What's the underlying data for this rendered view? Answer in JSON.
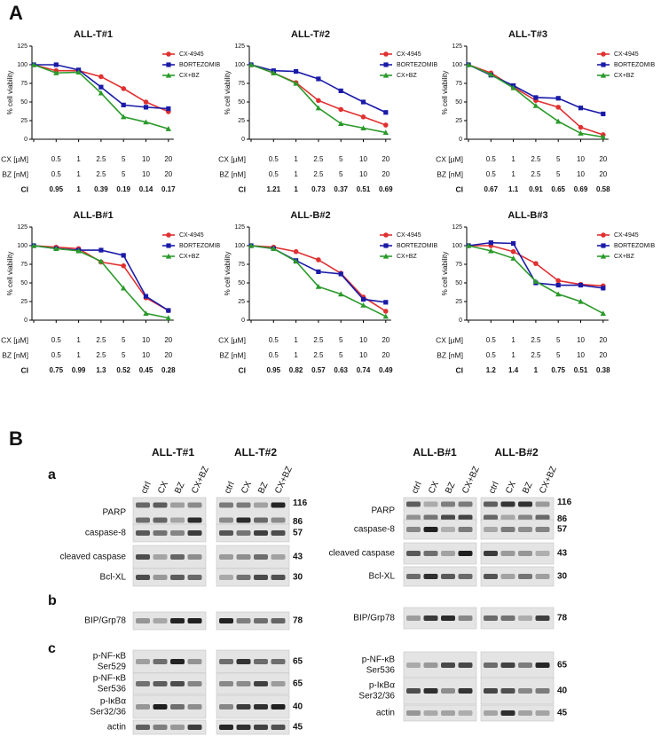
{
  "panel_labels": [
    "A",
    "B"
  ],
  "chart_data": [
    {
      "type": "line",
      "title": "ALL-T#1",
      "y_label": "% cell viability",
      "ylim": [
        0,
        125
      ],
      "yticks": [
        0,
        25,
        50,
        75,
        100,
        125
      ],
      "series": [
        {
          "name": "CX-4945",
          "color": "#e03030",
          "marker": "circle",
          "values": [
            100,
            92,
            92,
            84,
            68,
            50,
            37
          ]
        },
        {
          "name": "BORTEZOMIB",
          "color": "#1a1aa8",
          "marker": "square",
          "values": [
            100,
            100,
            93,
            70,
            46,
            43,
            41
          ]
        },
        {
          "name": "CX+BZ",
          "color": "#2a9a2a",
          "marker": "triangle",
          "values": [
            100,
            89,
            90,
            62,
            30,
            23,
            14
          ]
        }
      ],
      "rows": [
        {
          "label": "CX [µM]",
          "values": [
            0.5,
            1,
            2.5,
            5,
            10,
            20
          ]
        },
        {
          "label": "BZ [nM]",
          "values": [
            0.5,
            1,
            2.5,
            5,
            10,
            20
          ]
        },
        {
          "label": "CI",
          "values": [
            0.95,
            1,
            0.39,
            0.19,
            0.14,
            0.17
          ]
        }
      ]
    },
    {
      "type": "line",
      "title": "ALL-T#2",
      "y_label": "% cell viability",
      "ylim": [
        0,
        125
      ],
      "yticks": [
        0,
        25,
        50,
        75,
        100,
        125
      ],
      "series": [
        {
          "name": "CX-4945",
          "color": "#e03030",
          "marker": "circle",
          "values": [
            100,
            89,
            76,
            52,
            40,
            30,
            19
          ]
        },
        {
          "name": "BORTEZOMIB",
          "color": "#1a1aa8",
          "marker": "square",
          "values": [
            100,
            92,
            91,
            81,
            65,
            50,
            36
          ]
        },
        {
          "name": "CX+BZ",
          "color": "#2a9a2a",
          "marker": "triangle",
          "values": [
            100,
            89,
            75,
            42,
            21,
            15,
            9
          ]
        }
      ],
      "rows": [
        {
          "label": "CX [µM]",
          "values": [
            0.5,
            1,
            2.5,
            5,
            10,
            20
          ]
        },
        {
          "label": "BZ [nM]",
          "values": [
            0.5,
            1,
            2.5,
            5,
            10,
            20
          ]
        },
        {
          "label": "CI",
          "values": [
            1.21,
            1,
            0.73,
            0.37,
            0.51,
            0.69
          ]
        }
      ]
    },
    {
      "type": "line",
      "title": "ALL-T#3",
      "y_label": "% cell viability",
      "ylim": [
        0,
        125
      ],
      "yticks": [
        0,
        25,
        50,
        75,
        100,
        125
      ],
      "series": [
        {
          "name": "CX-4945",
          "color": "#e03030",
          "marker": "circle",
          "values": [
            100,
            89,
            70,
            52,
            43,
            16,
            6
          ]
        },
        {
          "name": "BORTEZOMIB",
          "color": "#1a1aa8",
          "marker": "square",
          "values": [
            100,
            86,
            72,
            56,
            55,
            42,
            34
          ]
        },
        {
          "name": "CX+BZ",
          "color": "#2a9a2a",
          "marker": "triangle",
          "values": [
            100,
            87,
            69,
            45,
            24,
            8,
            3
          ]
        }
      ],
      "rows": [
        {
          "label": "CX [µM]",
          "values": [
            0.5,
            1,
            2.5,
            5,
            10,
            20
          ]
        },
        {
          "label": "BZ [nM]",
          "values": [
            0.5,
            1,
            2.5,
            5,
            10,
            20
          ]
        },
        {
          "label": "CI",
          "values": [
            0.67,
            1.1,
            0.91,
            0.65,
            0.69,
            0.58
          ]
        }
      ]
    },
    {
      "type": "line",
      "title": "ALL-B#1",
      "y_label": "% cell viability",
      "ylim": [
        0,
        125
      ],
      "yticks": [
        0,
        25,
        50,
        75,
        100,
        125
      ],
      "series": [
        {
          "name": "CX-4945",
          "color": "#e03030",
          "marker": "circle",
          "values": [
            100,
            98,
            96,
            78,
            73,
            30,
            13
          ]
        },
        {
          "name": "BORTEZOMIB",
          "color": "#1a1aa8",
          "marker": "square",
          "values": [
            100,
            96,
            94,
            94,
            87,
            32,
            13
          ]
        },
        {
          "name": "CX+BZ",
          "color": "#2a9a2a",
          "marker": "triangle",
          "values": [
            100,
            96,
            93,
            79,
            43,
            9,
            3
          ]
        }
      ],
      "rows": [
        {
          "label": "CX [µM]",
          "values": [
            0.5,
            1,
            2.5,
            5,
            10,
            20
          ]
        },
        {
          "label": "BZ [nM]",
          "values": [
            0.5,
            1,
            2.5,
            5,
            10,
            20
          ]
        },
        {
          "label": "CI",
          "values": [
            0.75,
            0.99,
            1.3,
            0.52,
            0.45,
            0.28
          ]
        }
      ]
    },
    {
      "type": "line",
      "title": "ALL-B#2",
      "y_label": "% cell viability",
      "ylim": [
        0,
        125
      ],
      "yticks": [
        0,
        25,
        50,
        75,
        100,
        125
      ],
      "series": [
        {
          "name": "CX-4945",
          "color": "#e03030",
          "marker": "circle",
          "values": [
            100,
            98,
            92,
            81,
            63,
            31,
            12
          ]
        },
        {
          "name": "BORTEZOMIB",
          "color": "#1a1aa8",
          "marker": "square",
          "values": [
            100,
            96,
            80,
            65,
            62,
            28,
            24
          ]
        },
        {
          "name": "CX+BZ",
          "color": "#2a9a2a",
          "marker": "triangle",
          "values": [
            100,
            96,
            79,
            45,
            35,
            20,
            5
          ]
        }
      ],
      "rows": [
        {
          "label": "CX [µM]",
          "values": [
            0.5,
            1,
            2.5,
            5,
            10,
            20
          ]
        },
        {
          "label": "BZ [nM]",
          "values": [
            0.5,
            1,
            2.5,
            5,
            10,
            20
          ]
        },
        {
          "label": "CI",
          "values": [
            0.95,
            0.82,
            0.57,
            0.63,
            0.74,
            0.49
          ]
        }
      ]
    },
    {
      "type": "line",
      "title": "ALL-B#3",
      "y_label": "% cell viability",
      "ylim": [
        0,
        125
      ],
      "yticks": [
        0,
        25,
        50,
        75,
        100,
        125
      ],
      "series": [
        {
          "name": "CX-4945",
          "color": "#e03030",
          "marker": "circle",
          "values": [
            100,
            100,
            92,
            76,
            53,
            48,
            46
          ]
        },
        {
          "name": "BORTEZOMIB",
          "color": "#1a1aa8",
          "marker": "square",
          "values": [
            100,
            104,
            103,
            50,
            47,
            47,
            43
          ]
        },
        {
          "name": "CX+BZ",
          "color": "#2a9a2a",
          "marker": "triangle",
          "values": [
            100,
            93,
            83,
            52,
            35,
            25,
            9
          ]
        }
      ],
      "rows": [
        {
          "label": "CX [µM]",
          "values": [
            0.5,
            1,
            2.5,
            5,
            10,
            20
          ]
        },
        {
          "label": "BZ [nM]",
          "values": [
            0.5,
            1,
            2.5,
            5,
            10,
            20
          ]
        },
        {
          "label": "CI",
          "values": [
            1.2,
            1.4,
            1,
            0.75,
            0.51,
            0.38
          ]
        }
      ]
    }
  ],
  "blots": {
    "sections": [
      "a",
      "b",
      "c"
    ],
    "lanes": [
      "ctrl",
      "CX",
      "BZ",
      "CX+BZ"
    ],
    "groups": [
      {
        "columns": [
          "ALL-T#1",
          "ALL-T#2"
        ],
        "rows": [
          {
            "label": [
              "PARP"
            ],
            "mw": [
              116,
              86
            ]
          },
          {
            "label": [
              "caspase-8"
            ],
            "mw": [
              57
            ]
          },
          {
            "label": [
              "cleaved caspase"
            ],
            "mw": [
              43
            ]
          },
          {
            "label": [
              "Bcl-XL"
            ],
            "mw": [
              30
            ]
          },
          {
            "label": [
              "BIP/Grp78"
            ],
            "mw": [
              78
            ]
          },
          {
            "label": [
              "p-NF-κB",
              "Ser529"
            ],
            "mw": [
              65
            ]
          },
          {
            "label": [
              "p-NF-κB",
              "Ser536"
            ],
            "mw": [
              65
            ]
          },
          {
            "label": [
              "p-IκBα",
              "Ser32/36"
            ],
            "mw": [
              40
            ]
          },
          {
            "label": [
              "actin"
            ],
            "mw": [
              45
            ]
          }
        ]
      },
      {
        "columns": [
          "ALL-B#1",
          "ALL-B#2"
        ],
        "rows": [
          {
            "label": [
              "PARP"
            ],
            "mw": [
              116,
              86
            ]
          },
          {
            "label": [
              "caspase-8"
            ],
            "mw": [
              57
            ]
          },
          {
            "label": [
              "cleaved caspase"
            ],
            "mw": [
              43
            ]
          },
          {
            "label": [
              "Bcl-XL"
            ],
            "mw": [
              30
            ]
          },
          {
            "label": [
              "BIP/Grp78"
            ],
            "mw": [
              78
            ]
          },
          {
            "label": [
              "p-NF-κB",
              "Ser536"
            ],
            "mw": [
              65
            ]
          },
          {
            "label": [
              "p-IκBα",
              "Ser32/36"
            ],
            "mw": [
              40
            ]
          },
          {
            "label": [
              "actin"
            ],
            "mw": [
              45
            ]
          }
        ]
      }
    ]
  }
}
